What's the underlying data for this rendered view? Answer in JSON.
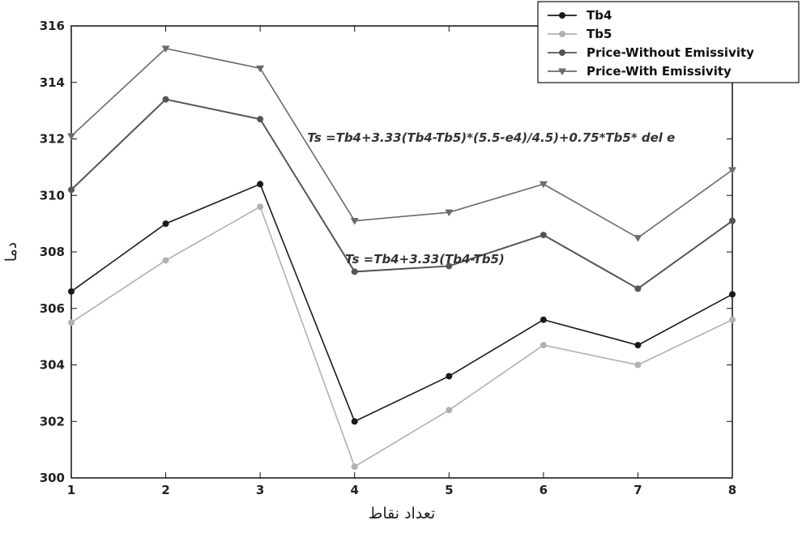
{
  "chart_data": {
    "type": "line",
    "title": "",
    "xlabel": "تعداد نقاط",
    "ylabel": "دما",
    "x": [
      1,
      2,
      3,
      4,
      5,
      6,
      7,
      8
    ],
    "xlim": [
      1,
      8
    ],
    "ylim": [
      300,
      316
    ],
    "x_ticks": [
      "1",
      "2",
      "3",
      "4",
      "5",
      "6",
      "7",
      "8"
    ],
    "y_ticks": [
      "300",
      "302",
      "304",
      "306",
      "308",
      "310",
      "312",
      "314",
      "316"
    ],
    "grid": false,
    "legend_position": "top-right",
    "series": [
      {
        "name": "Tb4",
        "color": "#1a1a1a",
        "marker": "circle",
        "values": [
          306.6,
          309.0,
          310.4,
          302.0,
          303.6,
          305.6,
          304.7,
          306.5
        ]
      },
      {
        "name": "Tb5",
        "color": "#b0b0b0",
        "marker": "circle",
        "values": [
          305.5,
          307.7,
          309.6,
          300.4,
          302.4,
          304.7,
          304.0,
          305.6
        ]
      },
      {
        "name": "Price-Without Emissivity",
        "color": "#555555",
        "marker": "circle",
        "values": [
          310.2,
          313.4,
          312.7,
          307.3,
          307.5,
          308.6,
          306.7,
          309.1
        ]
      },
      {
        "name": "Price-With Emissivity",
        "color": "#6a6a6a",
        "marker": "triangle-down",
        "values": [
          312.1,
          315.2,
          314.5,
          309.1,
          309.4,
          310.4,
          308.5,
          310.9
        ]
      }
    ],
    "annotations": [
      {
        "text": "Ts =Tb4+3.33(Tb4-Tb5)*(5.5-e4)/4.5)+0.75*Tb5* del e",
        "x": 3.5,
        "y": 311.9
      },
      {
        "text": "Ts =Tb4+3.33(Tb4-Tb5)",
        "x": 3.9,
        "y": 307.6
      }
    ]
  }
}
